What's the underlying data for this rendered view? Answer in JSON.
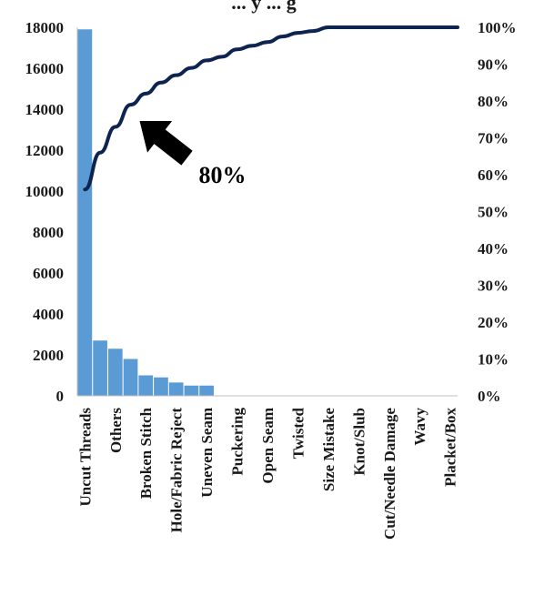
{
  "chart_data": {
    "type": "bar",
    "title": "... y ... g",
    "categories": [
      "Uncut Threads",
      "",
      "Others",
      "",
      "Broken Stitch",
      "",
      "Hole/Fabric Reject",
      "",
      "Uneven Seam",
      "",
      "Puckering",
      "",
      "Open Seam",
      "",
      "Twisted",
      "",
      "Size Mistake",
      "",
      "Knot/Slub",
      "",
      "Cut/Needle Damage",
      "",
      "Wavy",
      "",
      "Placket/Box"
    ],
    "series": [
      {
        "type": "bar",
        "values": [
          17900,
          2700,
          2300,
          1800,
          1000,
          900,
          650,
          500,
          500,
          0,
          0,
          0,
          0,
          0,
          0,
          0,
          0,
          0,
          0,
          0,
          0,
          0,
          0,
          0,
          0
        ]
      },
      {
        "type": "line",
        "axis": "right",
        "values": [
          56,
          66,
          73,
          79,
          82,
          85,
          87,
          89,
          91,
          92,
          94,
          95,
          96,
          97.5,
          98.5,
          99,
          100,
          100,
          100,
          100,
          100,
          100,
          100,
          100,
          100
        ]
      }
    ],
    "y_left": {
      "min": 0,
      "max": 18000,
      "ticks": [
        0,
        2000,
        4000,
        6000,
        8000,
        10000,
        12000,
        14000,
        16000,
        18000
      ]
    },
    "y_right": {
      "min": 0,
      "max": 100,
      "ticks": [
        "0%",
        "10%",
        "20%",
        "30%",
        "40%",
        "50%",
        "60%",
        "70%",
        "80%",
        "90%",
        "100%"
      ]
    },
    "annotation": {
      "label": "80%",
      "points_to": {
        "category_index": 3,
        "value": 79
      }
    },
    "grid": false,
    "legend": "none",
    "colors": {
      "bar": "#5b9bd5",
      "line": "#0d2350",
      "arrow": "#000000"
    }
  }
}
